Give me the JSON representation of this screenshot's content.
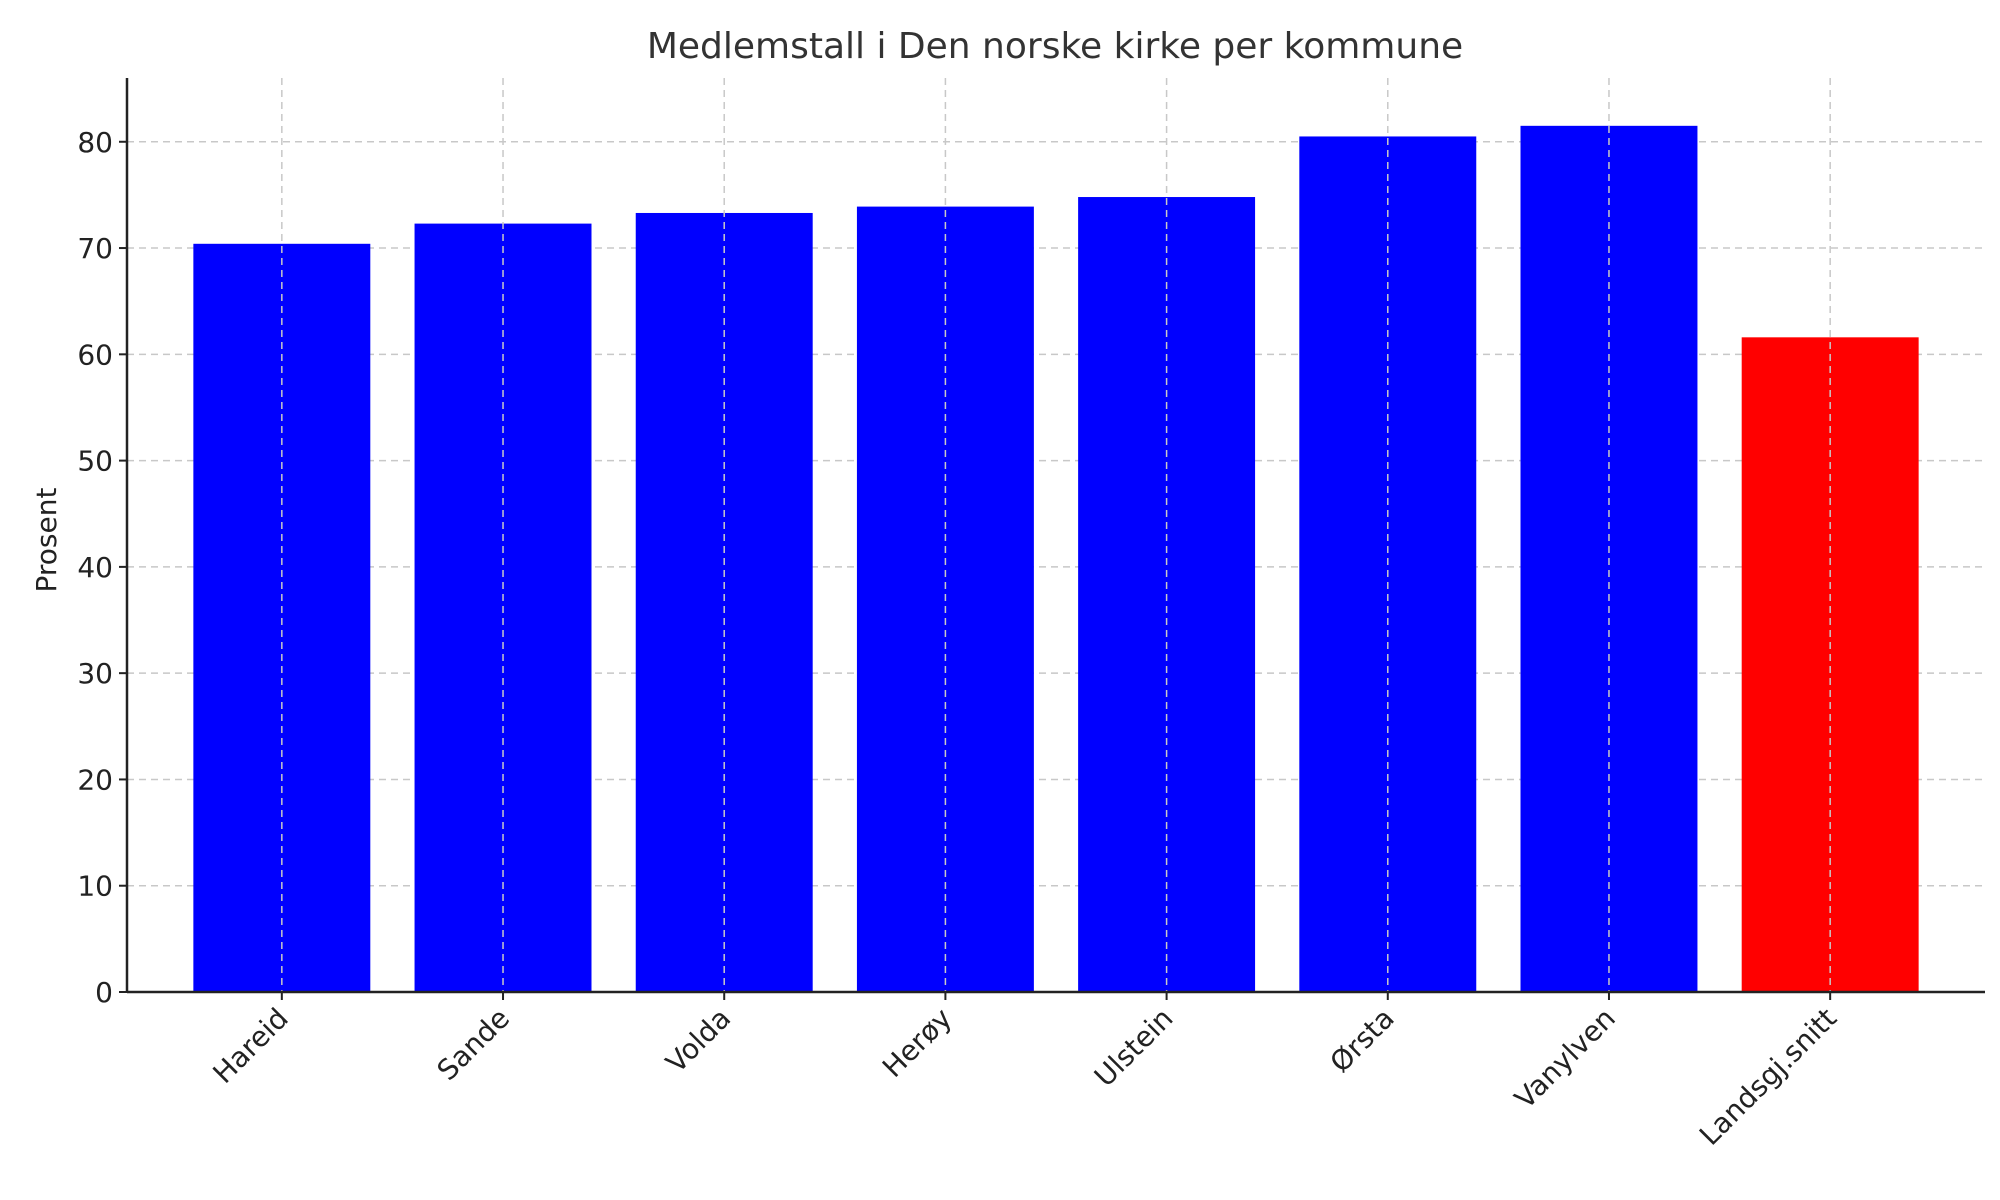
{
  "chart_data": {
    "type": "bar",
    "title": "Medlemstall i Den norske kirke per kommune",
    "xlabel": "",
    "ylabel": "Prosent",
    "categories": [
      "Hareid",
      "Sande",
      "Volda",
      "Herøy",
      "Ulstein",
      "Ørsta",
      "Vanylven",
      "Landsgj.snitt"
    ],
    "values": [
      70.4,
      72.3,
      73.3,
      73.9,
      74.8,
      80.5,
      81.5,
      61.6
    ],
    "bar_colors": [
      "#0000ff",
      "#0000ff",
      "#0000ff",
      "#0000ff",
      "#0000ff",
      "#0000ff",
      "#0000ff",
      "#ff0000"
    ],
    "ylim": [
      0,
      86
    ],
    "yticks": [
      0,
      10,
      20,
      30,
      40,
      50,
      60,
      70,
      80
    ],
    "grid": true,
    "legend": "none"
  }
}
